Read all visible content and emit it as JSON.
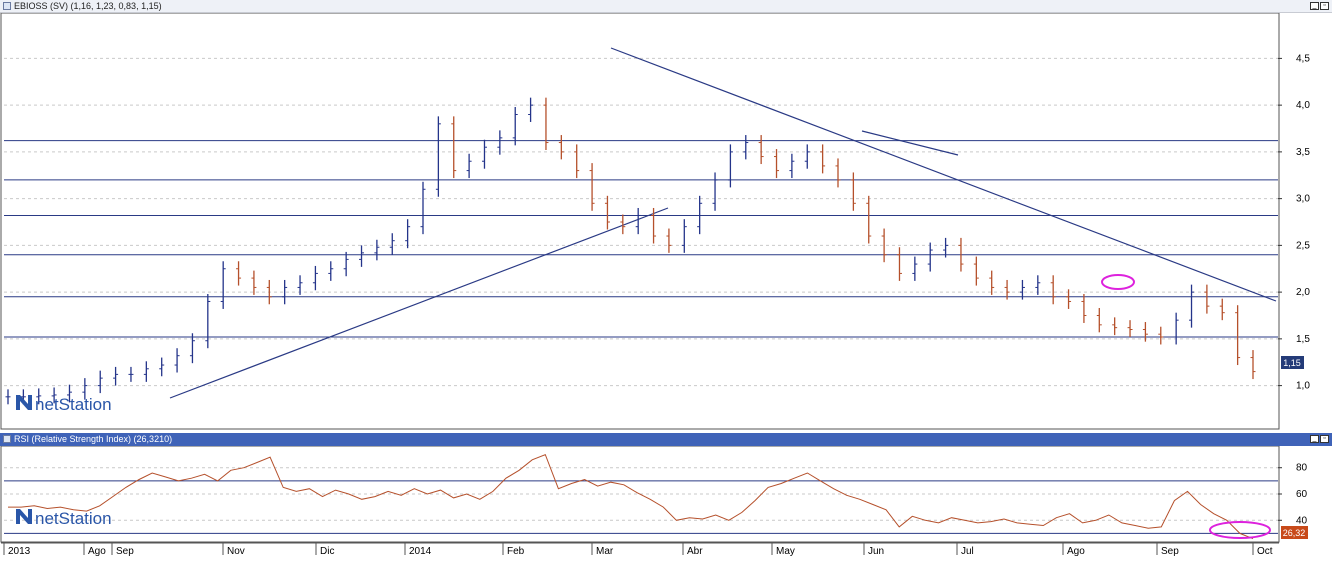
{
  "main_chart": {
    "title": "EBIOSS (SV) (1,16, 1,23, 0,83, 1,15)",
    "last_price_label": "1,15",
    "y_ticks": [
      {
        "v": 1.0,
        "label": "1,0"
      },
      {
        "v": 1.5,
        "label": "1,5"
      },
      {
        "v": 2.0,
        "label": "2,0"
      },
      {
        "v": 2.5,
        "label": "2,5"
      },
      {
        "v": 3.0,
        "label": "3,0"
      },
      {
        "v": 3.5,
        "label": "3,5"
      },
      {
        "v": 4.0,
        "label": "4,0"
      },
      {
        "v": 4.5,
        "label": "4,5"
      }
    ],
    "horizontal_levels": [
      1.52,
      1.95,
      2.4,
      2.82,
      3.2,
      3.62
    ]
  },
  "rsi_chart": {
    "title": "RSI (Relative Strength Index) (26,3210)",
    "last_value_label": "26,32",
    "y_ticks": [
      {
        "v": 40,
        "label": "40"
      },
      {
        "v": 60,
        "label": "60"
      },
      {
        "v": 80,
        "label": "80"
      }
    ],
    "levels": [
      30,
      70
    ]
  },
  "x_axis": [
    {
      "label": "2013",
      "year": true
    },
    {
      "label": "Ago",
      "year": false
    },
    {
      "label": "Sep",
      "year": false
    },
    {
      "label": "Nov",
      "year": false
    },
    {
      "label": "Dic",
      "year": false
    },
    {
      "label": "2014",
      "year": true
    },
    {
      "label": "Feb",
      "year": false
    },
    {
      "label": "Mar",
      "year": false
    },
    {
      "label": "Abr",
      "year": false
    },
    {
      "label": "May",
      "year": false
    },
    {
      "label": "Jun",
      "year": false
    },
    {
      "label": "Jul",
      "year": false
    },
    {
      "label": "Ago",
      "year": false
    },
    {
      "label": "Sep",
      "year": false
    },
    {
      "label": "Oct",
      "year": false
    }
  ],
  "brand": {
    "text": "netStation"
  },
  "chart_data": [
    {
      "type": "line",
      "title": "EBIOSS (SV) (1,16, 1,23, 0,83, 1,15)",
      "ylim": [
        0.6,
        4.9
      ],
      "series": [
        {
          "values": [
            0.88,
            0.88,
            0.89,
            0.9,
            0.93,
            1.0,
            1.08,
            1.12,
            1.12,
            1.18,
            1.22,
            1.32,
            1.48,
            1.9,
            2.25,
            2.15,
            2.05,
            1.95,
            2.05,
            2.1,
            2.2,
            2.25,
            2.35,
            2.42,
            2.48,
            2.55,
            2.7,
            3.1,
            3.8,
            3.3,
            3.4,
            3.55,
            3.65,
            3.9,
            4.0,
            3.6,
            3.5,
            3.3,
            2.95,
            2.75,
            2.7,
            2.82,
            2.6,
            2.5,
            2.7,
            2.95,
            3.2,
            3.5,
            3.6,
            3.45,
            3.3,
            3.4,
            3.5,
            3.35,
            3.2,
            2.95,
            2.6,
            2.4,
            2.2,
            2.3,
            2.45,
            2.5,
            2.3,
            2.15,
            2.05,
            2.0,
            2.05,
            2.1,
            1.95,
            1.9,
            1.75,
            1.65,
            1.62,
            1.6,
            1.55,
            1.52,
            1.7,
            2.0,
            1.85,
            1.78,
            1.3,
            1.15
          ]
        }
      ]
    },
    {
      "type": "line",
      "title": "RSI (Relative Strength Index) (26,3210)",
      "ylim": [
        25,
        95
      ],
      "series": [
        {
          "values": [
            50,
            50,
            51,
            49,
            50,
            48,
            47,
            51,
            58,
            65,
            71,
            76,
            73,
            70,
            72,
            75,
            70,
            78,
            80,
            84,
            88,
            65,
            62,
            64,
            58,
            63,
            60,
            56,
            58,
            62,
            59,
            64,
            60,
            63,
            57,
            60,
            56,
            62,
            72,
            78,
            86,
            90,
            64,
            68,
            71,
            66,
            69,
            67,
            61,
            56,
            50,
            40,
            42,
            41,
            44,
            40,
            46,
            55,
            65,
            68,
            72,
            76,
            70,
            64,
            59,
            56,
            52,
            48,
            35,
            43,
            40,
            38,
            42,
            40,
            38,
            39,
            41,
            38,
            37,
            36,
            42,
            45,
            38,
            40,
            44,
            38,
            36,
            34,
            35,
            55,
            62,
            52,
            45,
            40,
            30,
            26
          ]
        }
      ]
    }
  ]
}
